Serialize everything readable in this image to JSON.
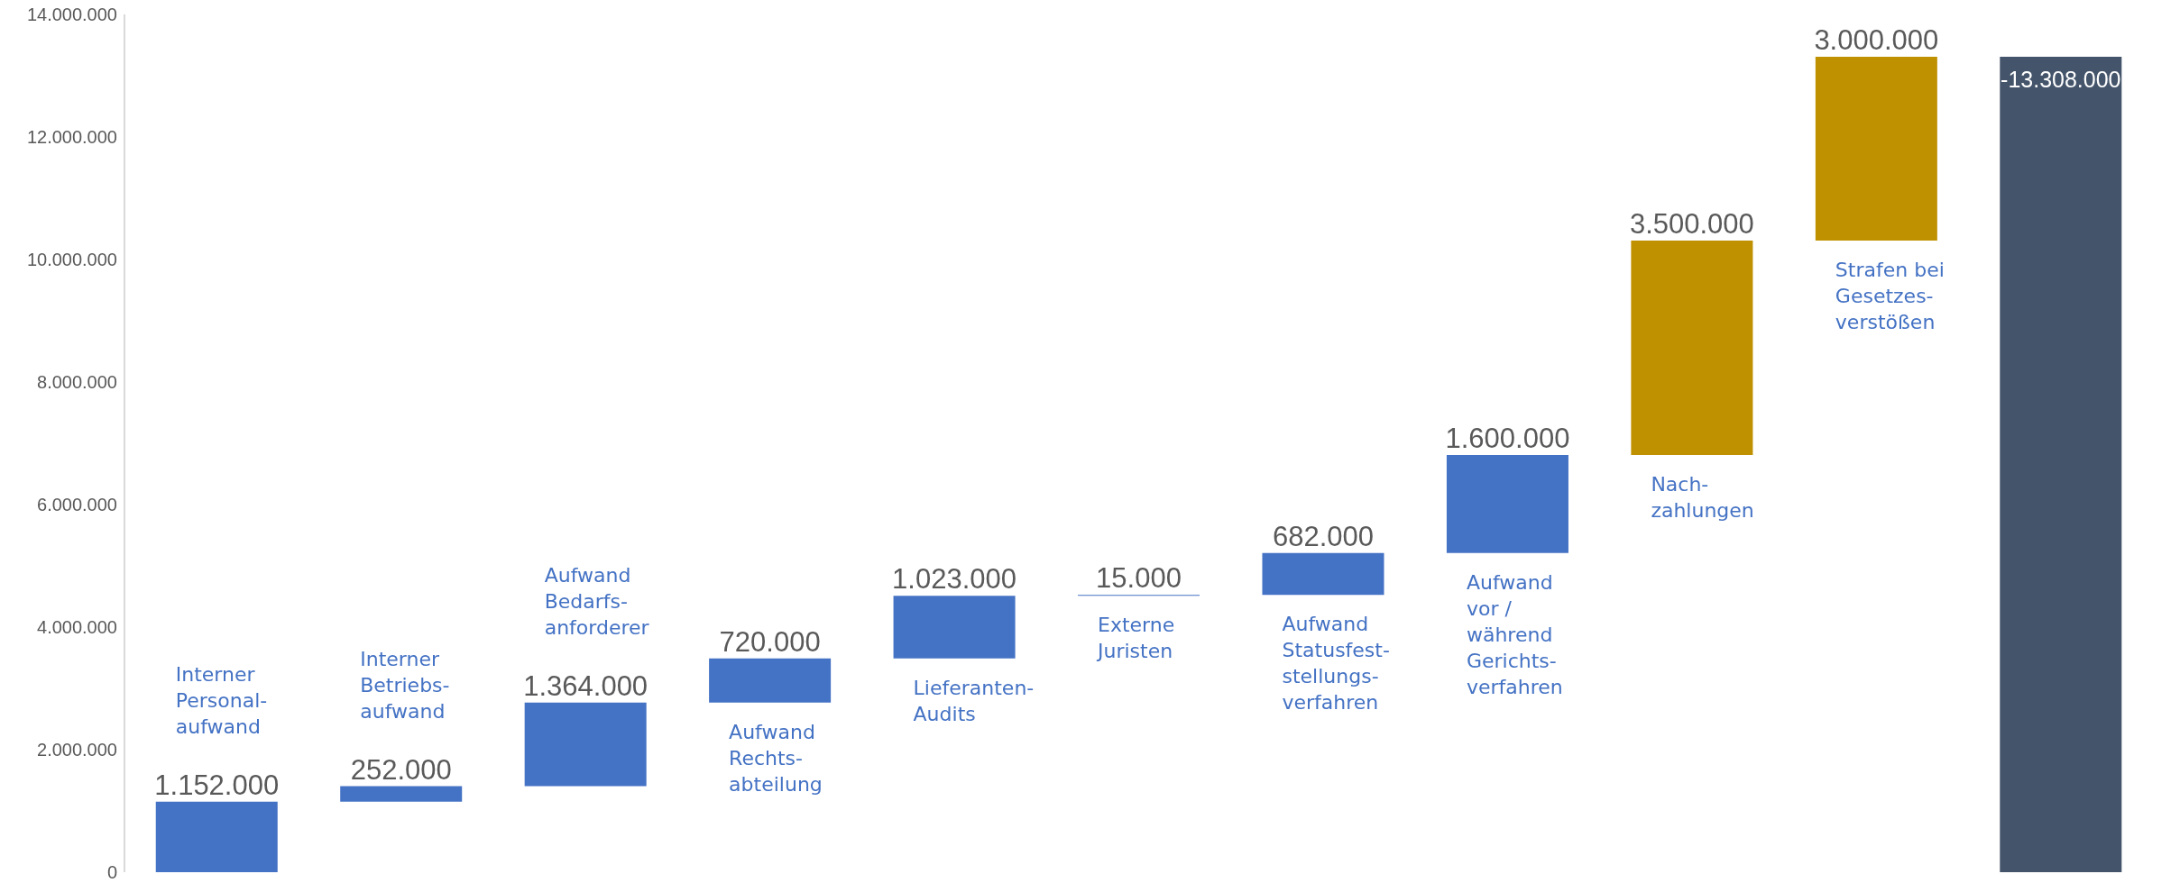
{
  "chart_data": {
    "type": "bar",
    "categories": [
      "Interner\nPersonal-\naufwand",
      "Interner\nBetriebs-\naufwand",
      "Aufwand\nBedarfs-\nanforderer",
      "Aufwand\nRechts-\nabteilung",
      "Lieferanten-\nAudits",
      "Externe\nJuristen",
      "Aufwand\nStatusfest-\nstellungs-\nverfahren",
      "Aufwand\nvor /\nwährend\nGerichts-\nverfahren",
      "Nach-\nzahlungen",
      "Strafen bei\nGesetzes-\nverstößen",
      null
    ],
    "values": [
      1152000,
      252000,
      1364000,
      720000,
      1023000,
      15000,
      682000,
      1600000,
      3500000,
      3000000,
      -13308000
    ],
    "base": [
      0,
      1152000,
      1404000,
      2768000,
      3488000,
      4511000,
      4526000,
      5208000,
      6808000,
      10308000,
      13308000
    ],
    "colors": [
      "#4472c4",
      "#4472c4",
      "#4472c4",
      "#4472c4",
      "#4472c4",
      "#4472c4",
      "#4472c4",
      "#4472c4",
      "#bf9000",
      "#bf9000",
      "#44546a"
    ],
    "value_labels": [
      "1.152.000",
      "252.000",
      "1.364.000",
      "720.000",
      "1.023.000",
      "15.000",
      "682.000",
      "1.600.000",
      "3.500.000",
      "3.000.000",
      "-13.308.000"
    ],
    "ylim": [
      0,
      14000000
    ],
    "yticks": [
      {
        "value": 0,
        "label": "0"
      },
      {
        "value": 2000000,
        "label": "2.000.000"
      },
      {
        "value": 4000000,
        "label": "4.000.000"
      },
      {
        "value": 6000000,
        "label": "6.000.000"
      },
      {
        "value": 8000000,
        "label": "8.000.000"
      },
      {
        "value": 10000000,
        "label": "10.000.000"
      },
      {
        "value": 12000000,
        "label": "12.000.000"
      },
      {
        "value": 14000000,
        "label": "14.000.000"
      }
    ],
    "tick_labels": "y",
    "grid": false,
    "legend": false
  }
}
